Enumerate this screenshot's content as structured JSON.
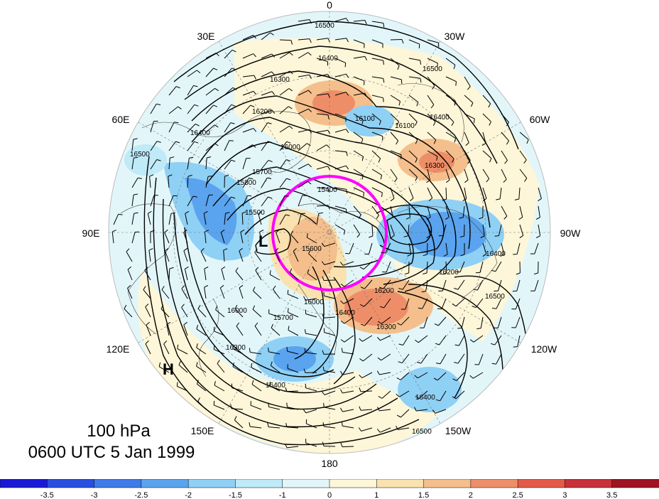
{
  "title": {
    "level": "100 hPa",
    "time": "0600 UTC 5 Jan 1999"
  },
  "longitude_labels": [
    {
      "id": "lon-0",
      "text": "0"
    },
    {
      "id": "lon-30w",
      "text": "30W"
    },
    {
      "id": "lon-60w",
      "text": "60W"
    },
    {
      "id": "lon-90w",
      "text": "90W"
    },
    {
      "id": "lon-120w",
      "text": "120W"
    },
    {
      "id": "lon-150w",
      "text": "150W"
    },
    {
      "id": "lon-180",
      "text": "180"
    },
    {
      "id": "lon-150e",
      "text": "150E"
    },
    {
      "id": "lon-120e",
      "text": "120E"
    },
    {
      "id": "lon-90e",
      "text": "90E"
    },
    {
      "id": "lon-60e",
      "text": "60E"
    },
    {
      "id": "lon-30e",
      "text": "30E"
    }
  ],
  "pressure_centers": [
    {
      "id": "low",
      "text": "L"
    },
    {
      "id": "high",
      "text": "H"
    }
  ],
  "contour_labels": [
    "16500",
    "16400",
    "16300",
    "16200",
    "16100",
    "16000",
    "15800",
    "15700",
    "15500",
    "15400",
    "16500",
    "16400",
    "16400",
    "16300",
    "16100",
    "16000",
    "16200",
    "16200",
    "16300",
    "16400",
    "16500",
    "16500",
    "15600",
    "16000",
    "16400",
    "16300",
    "15700",
    "16400",
    "16500",
    "16400"
  ],
  "colors": {
    "highlight_circle": "#ff00ff",
    "contour": "#000000"
  },
  "colorbar": {
    "ticks": [
      "-3.5",
      "-3",
      "-2.5",
      "-2",
      "-1.5",
      "-1",
      "0",
      "1",
      "1.5",
      "2",
      "2.5",
      "3",
      "3.5"
    ],
    "colors": [
      "#1a1ad6",
      "#2a4ee0",
      "#3f7ce8",
      "#5aa3ee",
      "#8fd0f5",
      "#bfeaf8",
      "#e2f6fa",
      "#fdf6d8",
      "#f9e2b0",
      "#f4bf8c",
      "#ee8e68",
      "#e45a48",
      "#c8303a",
      "#9e1422"
    ]
  },
  "chart_data": {
    "type": "map",
    "projection": "north polar stereographic",
    "field": "100 hPa geopotential height contours with shaded anomaly and wind barbs",
    "contour_interval": 100,
    "shading_scale": [
      -3.5,
      3.5
    ]
  }
}
